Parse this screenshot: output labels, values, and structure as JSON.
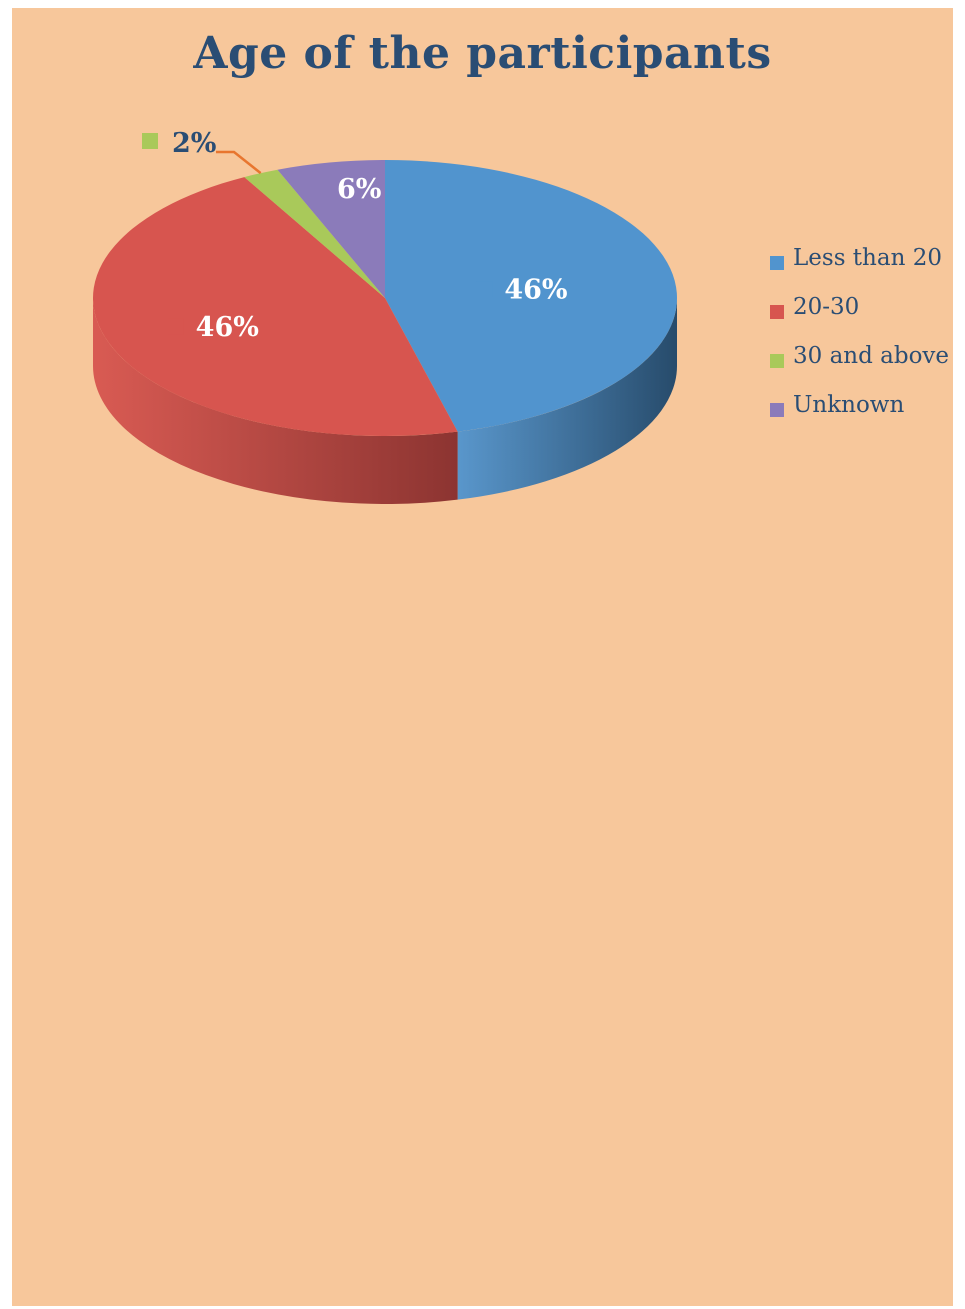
{
  "chart_data": {
    "type": "pie",
    "title": "Age of the participants",
    "series": [
      {
        "name": "Less than 20",
        "value": 46,
        "label": "46%",
        "color": "#5194ce",
        "side": "#274b6b",
        "label_color": "#ffffff"
      },
      {
        "name": "20-30",
        "value": 46,
        "label": "46%",
        "color": "#d7554f",
        "side": "#8c3431",
        "label_color": "#ffffff"
      },
      {
        "name": "30 and above",
        "value": 2,
        "label": "2%",
        "color": "#a9c95a",
        "side": "#6d8236",
        "label_color": "#2a4d74"
      },
      {
        "name": "Unknown",
        "value": 6,
        "label": "6%",
        "color": "#8b7bba",
        "side": "#574b7a",
        "label_color": "#ffffff"
      }
    ],
    "legend_position": "right",
    "style": "3d"
  }
}
